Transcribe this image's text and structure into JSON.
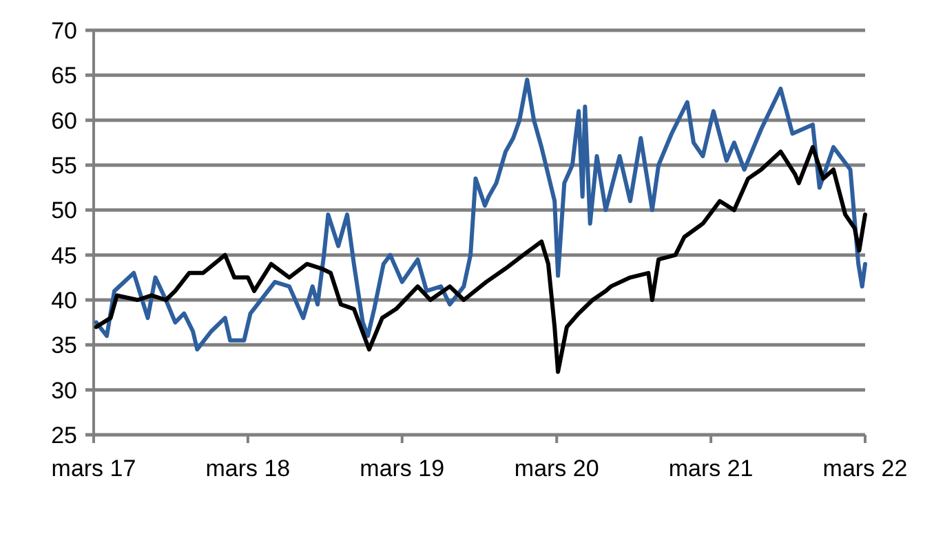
{
  "chart_data": {
    "type": "line",
    "x": [
      "2017-03-07",
      "2017-04-01",
      "2017-04-19",
      "2017-06-04",
      "2017-07-07",
      "2017-07-25",
      "2017-08-19",
      "2017-09-10",
      "2017-10-01",
      "2017-10-22",
      "2017-11-01",
      "2017-12-04",
      "2018-01-06",
      "2018-01-18",
      "2018-02-20",
      "2018-03-07",
      "2018-05-04",
      "2018-06-07",
      "2018-07-10",
      "2018-08-01",
      "2018-08-13",
      "2018-08-28",
      "2018-09-07",
      "2018-10-01",
      "2018-10-22",
      "2018-11-07",
      "2018-11-28",
      "2018-12-10",
      "2018-12-25",
      "2019-01-16",
      "2019-02-01",
      "2019-03-01",
      "2019-04-07",
      "2019-04-28",
      "2019-06-01",
      "2019-06-22",
      "2019-07-25",
      "2019-08-10",
      "2019-08-22",
      "2019-09-13",
      "2019-09-22",
      "2019-10-10",
      "2019-11-01",
      "2019-11-19",
      "2019-12-04",
      "2019-12-22",
      "2020-01-07",
      "2020-01-25",
      "2020-02-25",
      "2020-03-04",
      "2020-03-19",
      "2020-04-07",
      "2020-04-22",
      "2020-05-01",
      "2020-05-07",
      "2020-05-19",
      "2020-06-04",
      "2020-06-25",
      "2020-07-28",
      "2020-08-22",
      "2020-09-16",
      "2020-10-13",
      "2020-10-28",
      "2020-11-28",
      "2021-01-04",
      "2021-01-19",
      "2021-02-10",
      "2021-03-07",
      "2021-04-07",
      "2021-04-25",
      "2021-05-19",
      "2021-06-28",
      "2021-08-13",
      "2021-09-10",
      "2021-10-28",
      "2021-11-13",
      "2021-12-16",
      "2022-01-25",
      "2022-02-13",
      "2022-02-22",
      "2022-03-01"
    ],
    "series": [
      {
        "color": "#2e5f9e",
        "values": [
          37.5,
          36,
          41,
          43,
          38,
          42.5,
          40,
          37.5,
          38.5,
          36.5,
          34.5,
          36.5,
          38,
          35.5,
          35.5,
          38.5,
          42,
          41.5,
          38,
          41.5,
          39.5,
          45,
          49.5,
          46,
          49.5,
          44,
          37.5,
          36,
          39,
          44,
          45,
          42,
          44.5,
          41,
          41.5,
          39.5,
          41.5,
          45,
          53.5,
          50.5,
          51.5,
          53,
          56.5,
          58,
          60,
          64.5,
          60,
          57,
          51,
          42.7,
          53,
          55,
          61,
          51.5,
          61.5,
          48.5,
          56,
          50,
          56,
          51,
          58,
          50,
          55,
          58.5,
          62,
          57.5,
          56,
          61,
          55.5,
          57.5,
          54.5,
          59,
          63.5,
          58.5,
          59.5,
          52.5,
          57,
          54.5,
          44,
          41.5,
          44
        ]
      },
      {
        "color": "#000000",
        "x": [
          "2017-03-07",
          "2017-04-10",
          "2017-04-25",
          "2017-06-13",
          "2017-07-16",
          "2017-08-19",
          "2017-09-10",
          "2017-10-13",
          "2017-11-15",
          "2018-01-06",
          "2018-01-28",
          "2018-03-01",
          "2018-03-16",
          "2018-04-25",
          "2018-06-07",
          "2018-07-19",
          "2018-08-22",
          "2018-09-13",
          "2018-10-07",
          "2018-11-07",
          "2018-12-13",
          "2019-01-13",
          "2019-02-15",
          "2019-04-07",
          "2019-05-07",
          "2019-06-22",
          "2019-07-25",
          "2019-09-16",
          "2019-11-01",
          "2019-12-13",
          "2020-01-25",
          "2020-02-10",
          "2020-02-25",
          "2020-03-04",
          "2020-03-25",
          "2020-04-22",
          "2020-05-25",
          "2020-06-25",
          "2020-07-07",
          "2020-08-22",
          "2020-10-04",
          "2020-10-13",
          "2020-10-28",
          "2020-12-07",
          "2020-12-28",
          "2021-02-10",
          "2021-03-22",
          "2021-04-25",
          "2021-05-28",
          "2021-06-28",
          "2021-08-13",
          "2021-09-16",
          "2021-09-25",
          "2021-10-28",
          "2021-11-22",
          "2021-12-16",
          "2022-01-13",
          "2022-02-04",
          "2022-02-15",
          "2022-03-01"
        ],
        "values": [
          37,
          38,
          40.5,
          40,
          40.5,
          40,
          41,
          43,
          43,
          45,
          42.5,
          42.5,
          41,
          44,
          42.5,
          44,
          43.5,
          43,
          39.5,
          39,
          34.5,
          38,
          39,
          41.5,
          40,
          41.5,
          40,
          42,
          43.5,
          45,
          46.5,
          44,
          37,
          32,
          37,
          38.5,
          40,
          41,
          41.5,
          42.5,
          43,
          40,
          44.5,
          45,
          47,
          48.5,
          51,
          50,
          53.5,
          54.5,
          56.5,
          54,
          53,
          57,
          53.5,
          54.5,
          49.5,
          48,
          45.5,
          49.5
        ]
      }
    ],
    "xlim": [
      "2017-03-01",
      "2022-03-01"
    ],
    "xticks": [
      {
        "value": "2017-03-01",
        "label": "mars 17"
      },
      {
        "value": "2018-03-01",
        "label": "mars 18"
      },
      {
        "value": "2019-03-01",
        "label": "mars 19"
      },
      {
        "value": "2020-03-01",
        "label": "mars 20"
      },
      {
        "value": "2021-03-01",
        "label": "mars 21"
      },
      {
        "value": "2022-03-01",
        "label": "mars 22"
      }
    ],
    "ylim": [
      25,
      70
    ],
    "yticks": [
      25,
      30,
      35,
      40,
      45,
      50,
      55,
      60,
      65,
      70
    ],
    "grid": "y",
    "legend": false
  }
}
